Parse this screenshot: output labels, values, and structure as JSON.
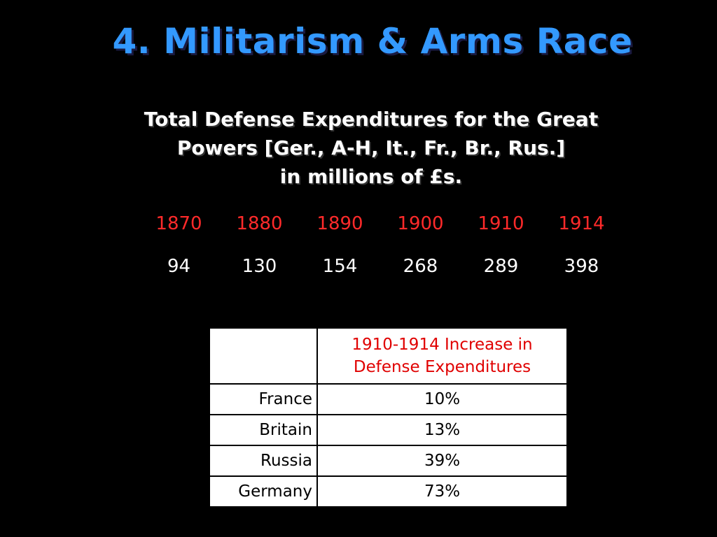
{
  "slide": {
    "title": "4. Militarism & Arms Race",
    "subtitle_lines": [
      "Total Defense Expenditures for the Great",
      "Powers [Ger., A-H, It., Fr., Br., Rus.]",
      "in millions of £s."
    ],
    "expenditures": {
      "years": [
        "1870",
        "1880",
        "1890",
        "1900",
        "1910",
        "1914"
      ],
      "values": [
        "94",
        "130",
        "154",
        "268",
        "289",
        "398"
      ]
    },
    "increase_table": {
      "corner_label": "",
      "header_lines": [
        "1910-1914 Increase in",
        "Defense Expenditures"
      ],
      "rows": [
        {
          "country": "France",
          "increase": "10%"
        },
        {
          "country": "Britain",
          "increase": "13%"
        },
        {
          "country": "Russia",
          "increase": "39%"
        },
        {
          "country": "Germany",
          "increase": "73%"
        }
      ]
    }
  },
  "colors": {
    "background": "#000000",
    "title": "#3399ff",
    "year_labels": "#ff2a2a",
    "table_header": "#e00000"
  }
}
